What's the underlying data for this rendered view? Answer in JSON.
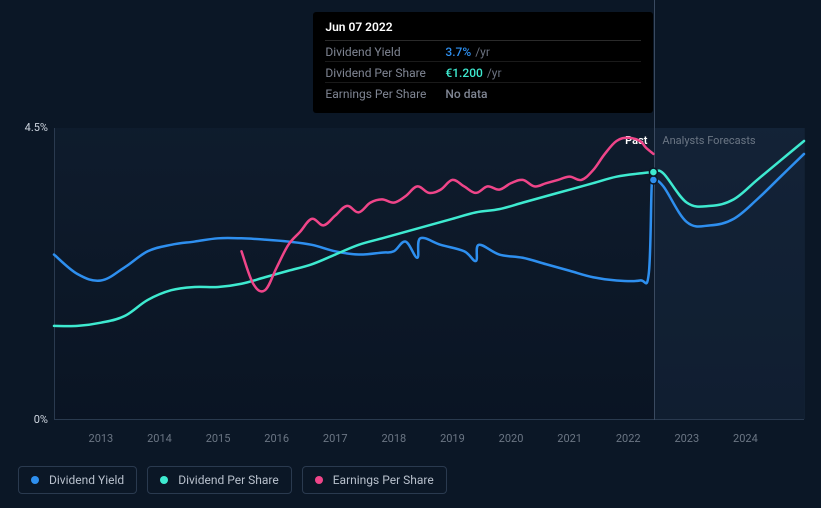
{
  "chart": {
    "type": "line",
    "background_color": "#0b1726",
    "grid_color": "#2a3a4f",
    "plot_bg_top": "rgba(20,35,55,0.4)",
    "plot_bg_bottom": "rgba(10,20,35,0.9)",
    "x_years": [
      2013,
      2014,
      2015,
      2016,
      2017,
      2018,
      2019,
      2020,
      2021,
      2022,
      2023,
      2024
    ],
    "x_domain": [
      2012.2,
      2025.0
    ],
    "y_domain": [
      0,
      4.5
    ],
    "y_ticks": [
      {
        "v": 0,
        "label": "0%"
      },
      {
        "v": 4.5,
        "label": "4.5%"
      }
    ],
    "today_x": 2022.43,
    "today_line_color": "#3a4a60",
    "past_label": "Past",
    "past_label_color": "#ffffff",
    "forecast_label": "Analysts Forecasts",
    "forecast_label_color": "#6b7684",
    "forecast_shade_color": "rgba(30,50,75,0.35)",
    "line_width": 2.5,
    "series": [
      {
        "id": "dividend_yield",
        "label": "Dividend Yield",
        "color": "#2e8fef",
        "points": [
          [
            2012.2,
            2.55
          ],
          [
            2012.6,
            2.25
          ],
          [
            2013.0,
            2.15
          ],
          [
            2013.4,
            2.35
          ],
          [
            2013.8,
            2.6
          ],
          [
            2014.2,
            2.7
          ],
          [
            2014.6,
            2.75
          ],
          [
            2015.0,
            2.8
          ],
          [
            2015.4,
            2.8
          ],
          [
            2015.8,
            2.78
          ],
          [
            2016.2,
            2.75
          ],
          [
            2016.6,
            2.7
          ],
          [
            2017.0,
            2.6
          ],
          [
            2017.4,
            2.55
          ],
          [
            2017.8,
            2.58
          ],
          [
            2018.0,
            2.6
          ],
          [
            2018.2,
            2.75
          ],
          [
            2018.4,
            2.5
          ],
          [
            2018.45,
            2.8
          ],
          [
            2018.8,
            2.7
          ],
          [
            2019.2,
            2.6
          ],
          [
            2019.4,
            2.45
          ],
          [
            2019.45,
            2.7
          ],
          [
            2019.8,
            2.55
          ],
          [
            2020.2,
            2.5
          ],
          [
            2020.6,
            2.4
          ],
          [
            2021.0,
            2.3
          ],
          [
            2021.4,
            2.2
          ],
          [
            2021.8,
            2.15
          ],
          [
            2022.2,
            2.15
          ],
          [
            2022.35,
            2.25
          ],
          [
            2022.4,
            3.6
          ],
          [
            2022.43,
            3.7
          ],
          [
            2022.6,
            3.6
          ],
          [
            2023.0,
            3.05
          ],
          [
            2023.4,
            3.0
          ],
          [
            2023.8,
            3.1
          ],
          [
            2024.2,
            3.4
          ],
          [
            2024.6,
            3.75
          ],
          [
            2025.0,
            4.1
          ]
        ],
        "marker_at_today": true
      },
      {
        "id": "dividend_per_share",
        "label": "Dividend Per Share",
        "color": "#3eead0",
        "points": [
          [
            2012.2,
            1.45
          ],
          [
            2012.6,
            1.45
          ],
          [
            2013.0,
            1.5
          ],
          [
            2013.4,
            1.6
          ],
          [
            2013.8,
            1.85
          ],
          [
            2014.2,
            2.0
          ],
          [
            2014.6,
            2.05
          ],
          [
            2015.0,
            2.05
          ],
          [
            2015.4,
            2.1
          ],
          [
            2015.8,
            2.2
          ],
          [
            2016.2,
            2.3
          ],
          [
            2016.6,
            2.4
          ],
          [
            2017.0,
            2.55
          ],
          [
            2017.4,
            2.7
          ],
          [
            2017.8,
            2.8
          ],
          [
            2018.2,
            2.9
          ],
          [
            2018.6,
            3.0
          ],
          [
            2019.0,
            3.1
          ],
          [
            2019.4,
            3.2
          ],
          [
            2019.8,
            3.25
          ],
          [
            2020.2,
            3.35
          ],
          [
            2020.6,
            3.45
          ],
          [
            2021.0,
            3.55
          ],
          [
            2021.4,
            3.65
          ],
          [
            2021.8,
            3.75
          ],
          [
            2022.2,
            3.8
          ],
          [
            2022.43,
            3.82
          ],
          [
            2022.6,
            3.8
          ],
          [
            2023.0,
            3.35
          ],
          [
            2023.4,
            3.3
          ],
          [
            2023.8,
            3.4
          ],
          [
            2024.2,
            3.7
          ],
          [
            2024.6,
            4.0
          ],
          [
            2025.0,
            4.3
          ]
        ],
        "marker_at_today": true
      },
      {
        "id": "earnings_per_share",
        "label": "Earnings Per Share",
        "color": "#ef4589",
        "points": [
          [
            2015.4,
            2.6
          ],
          [
            2015.6,
            2.1
          ],
          [
            2015.8,
            2.0
          ],
          [
            2016.0,
            2.35
          ],
          [
            2016.2,
            2.7
          ],
          [
            2016.4,
            2.9
          ],
          [
            2016.6,
            3.1
          ],
          [
            2016.8,
            3.0
          ],
          [
            2017.0,
            3.15
          ],
          [
            2017.2,
            3.3
          ],
          [
            2017.4,
            3.2
          ],
          [
            2017.6,
            3.35
          ],
          [
            2017.8,
            3.4
          ],
          [
            2018.0,
            3.35
          ],
          [
            2018.2,
            3.45
          ],
          [
            2018.4,
            3.6
          ],
          [
            2018.6,
            3.5
          ],
          [
            2018.8,
            3.55
          ],
          [
            2019.0,
            3.7
          ],
          [
            2019.2,
            3.6
          ],
          [
            2019.4,
            3.5
          ],
          [
            2019.6,
            3.6
          ],
          [
            2019.8,
            3.55
          ],
          [
            2020.0,
            3.65
          ],
          [
            2020.2,
            3.7
          ],
          [
            2020.4,
            3.6
          ],
          [
            2020.6,
            3.65
          ],
          [
            2020.8,
            3.7
          ],
          [
            2021.0,
            3.75
          ],
          [
            2021.2,
            3.7
          ],
          [
            2021.4,
            3.85
          ],
          [
            2021.6,
            4.1
          ],
          [
            2021.8,
            4.3
          ],
          [
            2022.0,
            4.35
          ],
          [
            2022.2,
            4.3
          ],
          [
            2022.3,
            4.2
          ],
          [
            2022.43,
            4.1
          ]
        ],
        "marker_at_today": false
      }
    ]
  },
  "tooltip": {
    "date": "Jun 07 2022",
    "rows": [
      {
        "key": "Dividend Yield",
        "value": "3.7%",
        "suffix": "/yr",
        "value_color": "#2e8fef"
      },
      {
        "key": "Dividend Per Share",
        "value": "€1.200",
        "suffix": "/yr",
        "value_color": "#3eead0"
      },
      {
        "key": "Earnings Per Share",
        "value": "No data",
        "suffix": "",
        "value_color": "#808694"
      }
    ]
  },
  "legend": [
    {
      "id": "dividend_yield",
      "label": "Dividend Yield",
      "color": "#2e8fef"
    },
    {
      "id": "dividend_per_share",
      "label": "Dividend Per Share",
      "color": "#3eead0"
    },
    {
      "id": "earnings_per_share",
      "label": "Earnings Per Share",
      "color": "#ef4589"
    }
  ]
}
